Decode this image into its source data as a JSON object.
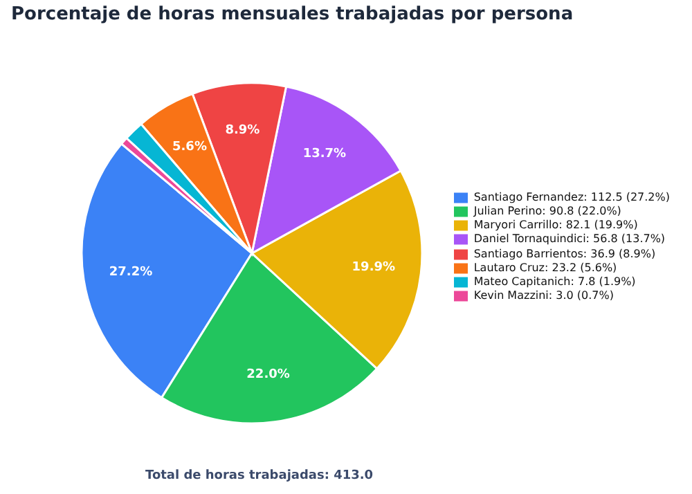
{
  "chart_data": {
    "type": "pie",
    "title": "Porcentaje de horas mensuales trabajadas por persona",
    "categories": [
      "Santiago Fernandez: 112.5 (27.2%)",
      "Julian Perino: 90.8 (22.0%)",
      "Maryori Carrillo: 82.1 (19.9%)",
      "Daniel Tornaquindici: 56.8 (13.7%)",
      "Santiago Barrientos: 36.9 (8.9%)",
      "Lautaro Cruz: 23.2 (5.6%)",
      "Mateo Capitanich: 7.8 (1.9%)",
      "Kevin Mazzini: 3.0 (0.7%)"
    ],
    "values": [
      27.2,
      22.0,
      19.9,
      13.7,
      8.9,
      5.6,
      1.9,
      0.7
    ],
    "colors": [
      "#3b82f6",
      "#22c55e",
      "#eab308",
      "#a855f7",
      "#ef4444",
      "#f97316",
      "#06b6d4",
      "#ec4899"
    ],
    "value_labels": [
      "27.2%",
      "22.0%",
      "19.9%",
      "13.7%",
      "8.9%",
      "5.6%",
      null,
      null
    ],
    "legend": "right",
    "annotations": [
      "Total de horas trabajadas: 413.0"
    ]
  }
}
